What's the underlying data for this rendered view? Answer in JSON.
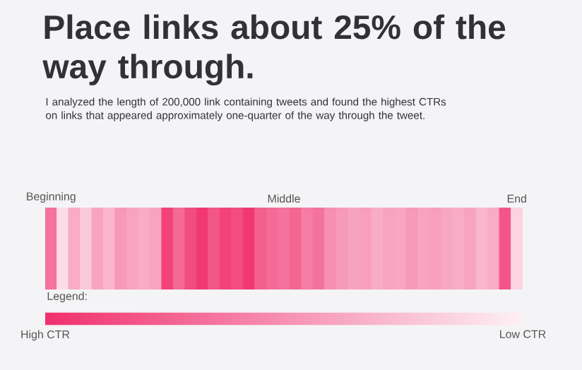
{
  "chart_data": {
    "type": "heatmap",
    "title": "Place links about 25% of the way through.",
    "subtitle": "I analyzed the length of 200,000 link containing tweets and found the highest CTRs on links that appeared approximately one-quarter of the way through the tweet.",
    "categories": [
      "Beginning",
      null,
      null,
      null,
      null,
      null,
      null,
      null,
      null,
      null,
      null,
      null,
      null,
      null,
      null,
      null,
      null,
      null,
      null,
      null,
      "Middle",
      null,
      null,
      null,
      null,
      null,
      null,
      null,
      null,
      null,
      null,
      null,
      null,
      null,
      null,
      null,
      null,
      null,
      null,
      null,
      "End"
    ],
    "y_categories": [
      null
    ],
    "cells": [
      [
        0.65,
        0.1,
        0.35,
        0.2,
        0.4,
        0.3,
        0.45,
        0.4,
        0.35,
        0.4,
        0.9,
        0.7,
        0.85,
        0.95,
        0.8,
        0.9,
        0.85,
        0.95,
        0.75,
        0.7,
        0.65,
        0.72,
        0.6,
        0.65,
        0.5,
        0.45,
        0.4,
        0.42,
        0.35,
        0.4,
        0.38,
        0.45,
        0.4,
        0.42,
        0.38,
        0.35,
        0.4,
        0.3,
        0.35,
        0.8,
        0.15
      ]
    ],
    "clim": [
      0,
      1
    ],
    "cticks": [
      {
        "value": 1,
        "label": "High CTR"
      },
      {
        "value": 0,
        "label": "Low CTR"
      }
    ],
    "clabel": "Legend:"
  }
}
